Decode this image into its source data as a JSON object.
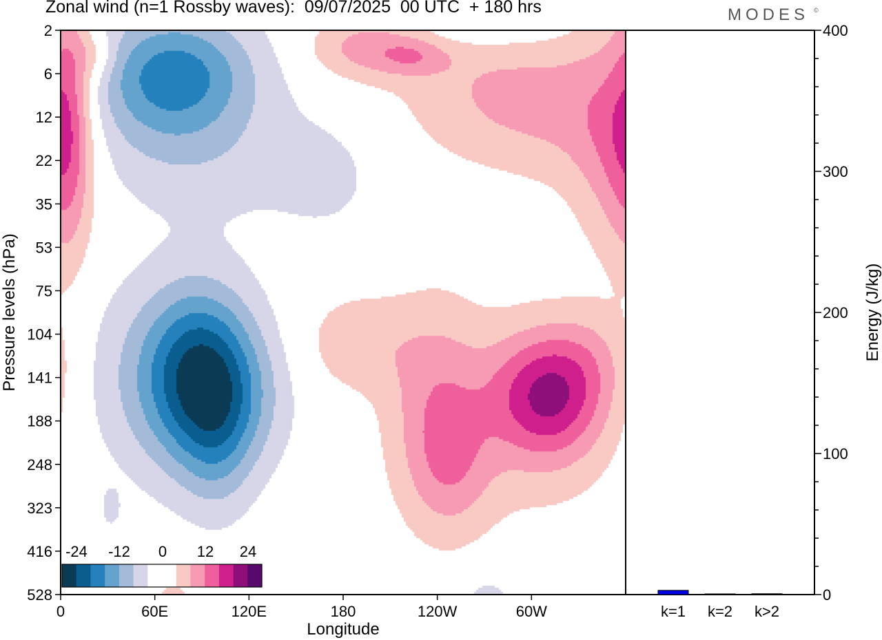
{
  "title": "Zonal wind (n=1 Rossby waves):  09/07/2025  00 UTC  + 180 hrs",
  "brand": "MODES",
  "brand_mark": "©",
  "colors": {
    "scale": [
      "#0b3a55",
      "#0a5d8f",
      "#2481bc",
      "#63a3cd",
      "#a3bad9",
      "#d6d6e8",
      "#ffffff",
      "#ffffff",
      "#f9c9c4",
      "#f79ab3",
      "#ef5f9c",
      "#cf1f8d",
      "#8f0f7a",
      "#570a6b"
    ],
    "energy_bar": "#0000e6"
  },
  "chart_data": [
    {
      "type": "heatmap",
      "title": "Zonal wind (n=1 Rossby waves):  09/07/2025  00 UTC  + 180 hrs",
      "xlabel": "Longitude",
      "ylabel": "Pressure levels (hPa)",
      "x_ticks": [
        {
          "lon": 0,
          "label": "0"
        },
        {
          "lon": 60,
          "label": "60E"
        },
        {
          "lon": 120,
          "label": "120E"
        },
        {
          "lon": 180,
          "label": "180"
        },
        {
          "lon": 240,
          "label": "120W"
        },
        {
          "lon": 300,
          "label": "60W"
        }
      ],
      "x_range": [
        0,
        360
      ],
      "y_levels": [
        "2",
        "6",
        "12",
        "22",
        "35",
        "53",
        "75",
        "104",
        "141",
        "188",
        "248",
        "323",
        "416",
        "528"
      ],
      "colorbar": {
        "labels": [
          "-24",
          "-12",
          "0",
          "12",
          "24"
        ],
        "range": [
          -30,
          30
        ],
        "step": 4.5
      },
      "features": [
        {
          "lon": 75,
          "level": 0.95,
          "sx": 35,
          "sy": 0.95,
          "value": -14
        },
        {
          "lon": 62,
          "level": 1.6,
          "sx": 38,
          "sy": 1.3,
          "value": -6
        },
        {
          "lon": 100,
          "level": 3.0,
          "sx": 45,
          "sy": 1.1,
          "value": -4
        },
        {
          "lon": 170,
          "level": 3.4,
          "sx": 25,
          "sy": 1.0,
          "value": -3.5
        },
        {
          "lon": 90,
          "level": 8.0,
          "sx": 25,
          "sy": 1.4,
          "value": -24
        },
        {
          "lon": 55,
          "level": 8.0,
          "sx": 35,
          "sy": 1.6,
          "value": -6
        },
        {
          "lon": 100,
          "level": 9.6,
          "sx": 16,
          "sy": 1.2,
          "value": -6
        },
        {
          "lon": 120,
          "level": 8.6,
          "sx": 22,
          "sy": 1.1,
          "value": -4
        },
        {
          "lon": 32,
          "level": 11.0,
          "sx": 4,
          "sy": 0.3,
          "value": -5
        },
        {
          "lon": 272,
          "level": 13.2,
          "sx": 12,
          "sy": 0.5,
          "value": -5
        },
        {
          "lon": 272,
          "level": 0.0,
          "sx": 35,
          "sy": 0.3,
          "value": -4
        },
        {
          "lon": 5,
          "level": 2.0,
          "sx": 10,
          "sy": 2.2,
          "value": 10
        },
        {
          "lon": 22,
          "level": 0.6,
          "sx": 10,
          "sy": 0.4,
          "value": 6
        },
        {
          "lon": 355,
          "level": 2.5,
          "sx": 18,
          "sy": 1.8,
          "value": 10
        },
        {
          "lon": 330,
          "level": 1.8,
          "sx": 25,
          "sy": 1.4,
          "value": 4
        },
        {
          "lon": 195,
          "level": 0.4,
          "sx": 25,
          "sy": 0.5,
          "value": 9
        },
        {
          "lon": 265,
          "level": 1.2,
          "sx": 40,
          "sy": 1.2,
          "value": 5.5
        },
        {
          "lon": 300,
          "level": 1.9,
          "sx": 35,
          "sy": 1.0,
          "value": 4
        },
        {
          "lon": 225,
          "level": 0.6,
          "sx": 15,
          "sy": 0.3,
          "value": 6
        },
        {
          "lon": 311,
          "level": 8.4,
          "sx": 25,
          "sy": 1.0,
          "value": 18
        },
        {
          "lon": 300,
          "level": 9.0,
          "sx": 40,
          "sy": 1.6,
          "value": 5
        },
        {
          "lon": 240,
          "level": 8.8,
          "sx": 22,
          "sy": 1.7,
          "value": 10
        },
        {
          "lon": 250,
          "level": 10.2,
          "sx": 18,
          "sy": 1.0,
          "value": 5
        },
        {
          "lon": 190,
          "level": 7.2,
          "sx": 25,
          "sy": 0.8,
          "value": 6
        },
        {
          "lon": 340,
          "level": 7.5,
          "sx": 20,
          "sy": 0.8,
          "value": 4
        },
        {
          "lon": 72,
          "level": 13.3,
          "sx": 10,
          "sy": 0.5,
          "value": 5
        }
      ]
    },
    {
      "type": "bar",
      "ylabel": "Energy (J/kg)",
      "categories": [
        "k=1",
        "k=2",
        "k>2"
      ],
      "values": [
        3,
        0.4,
        0.6
      ],
      "ylim": [
        0,
        400
      ],
      "y_ticks": [
        "0",
        "100",
        "200",
        "300",
        "400"
      ]
    }
  ]
}
